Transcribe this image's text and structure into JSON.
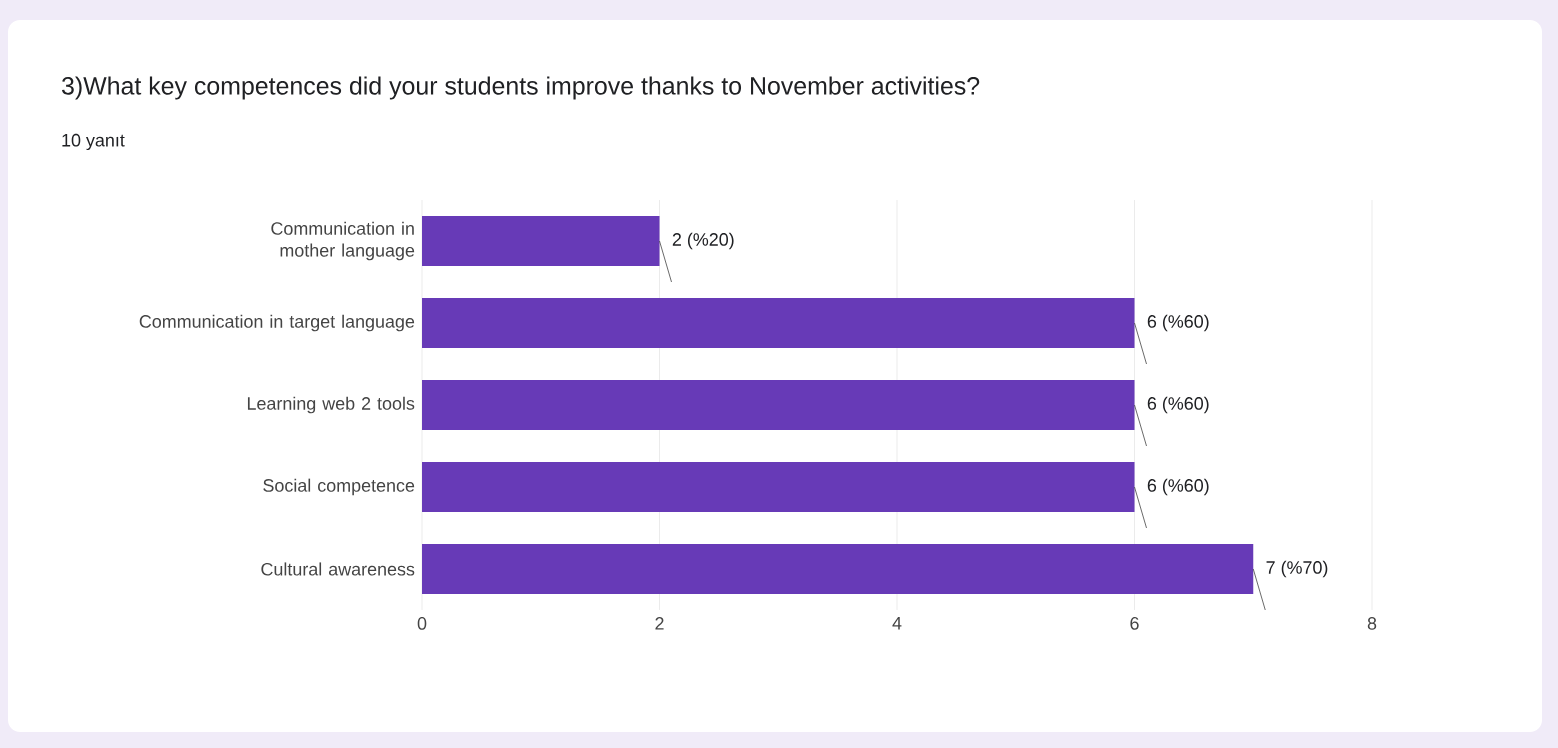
{
  "chart_data": {
    "type": "bar",
    "orientation": "horizontal",
    "title": "3)What key competences did your students improve thanks to November activities?",
    "subtitle": "10 yanıt",
    "categories": [
      "Communication in mother language",
      "Communication in target language",
      "Learning web 2 tools",
      "Social competence",
      "Cultural awareness"
    ],
    "values": [
      2,
      6,
      6,
      6,
      7
    ],
    "value_labels": [
      "2 (%20)",
      "6 (%60)",
      "6 (%60)",
      "6 (%60)",
      "7 (%70)"
    ],
    "color": "#673ab7",
    "xlim": [
      0,
      8
    ],
    "xticks": [
      0,
      2,
      4,
      6,
      8
    ],
    "grid": "x"
  }
}
